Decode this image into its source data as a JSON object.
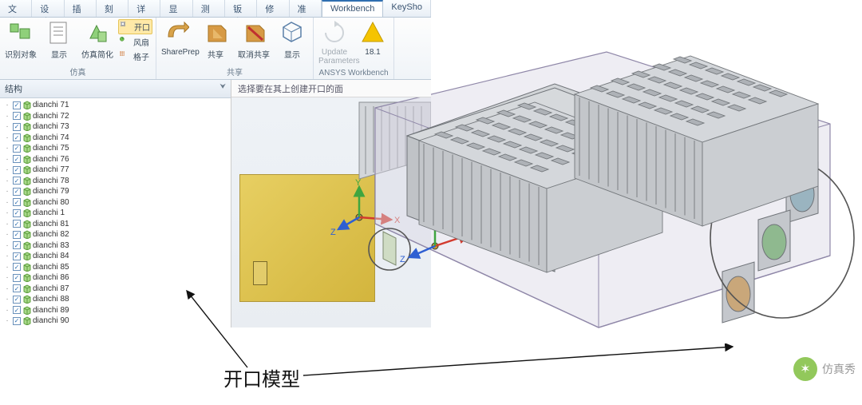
{
  "tabs": [
    "文件",
    "设计",
    "插入",
    "刻面",
    "详细",
    "显示",
    "测量",
    "钣金",
    "修复",
    "准备",
    "Workbench",
    "KeySho"
  ],
  "active_tab": 10,
  "ribbon": {
    "groups": [
      {
        "label": "仿真",
        "big": [
          {
            "key": "识别对象",
            "icon": "recognize"
          },
          {
            "key": "显示",
            "icon": "show-doc"
          },
          {
            "key": "仿真简化",
            "icon": "simplify"
          }
        ],
        "small": [
          {
            "key": "开口",
            "icon": "opening",
            "hl": true
          },
          {
            "key": "风扇",
            "icon": "fan"
          },
          {
            "key": "格子",
            "icon": "grille"
          }
        ]
      },
      {
        "label": "共享",
        "big": [
          {
            "key": "SharePrep",
            "icon": "shareprep"
          },
          {
            "key": "共享",
            "icon": "share"
          },
          {
            "key": "取消共享",
            "icon": "unshare"
          },
          {
            "key": "显示",
            "icon": "show-wire"
          }
        ]
      },
      {
        "label": "ANSYS Workbench",
        "big": [
          {
            "key": "Update Parameters",
            "icon": "update",
            "disabled": true
          },
          {
            "key": "18.1",
            "icon": "ansys"
          }
        ]
      }
    ]
  },
  "tree_title": "结构",
  "tree_items": [
    "dianchi 71",
    "dianchi 72",
    "dianchi 73",
    "dianchi 74",
    "dianchi 75",
    "dianchi 76",
    "dianchi 77",
    "dianchi 78",
    "dianchi 79",
    "dianchi 80",
    "dianchi 1",
    "dianchi 81",
    "dianchi 82",
    "dianchi 83",
    "dianchi 84",
    "dianchi 85",
    "dianchi 86",
    "dianchi 87",
    "dianchi 88",
    "dianchi 89",
    "dianchi 90"
  ],
  "prompt": "选择要在其上创建开口的面",
  "annotation": "开口模型",
  "axes": {
    "x": "X",
    "y": "Y",
    "z": "Z"
  },
  "watermark": "仿真秀",
  "colors": {
    "tab_active_border": "#2f6fb0",
    "ribbon_bg_top": "#fdfdfd",
    "ribbon_bg_bot": "#f0f4f8",
    "highlight_bg": "#ffe9a8",
    "highlight_border": "#e5c45a",
    "front_face_a": "#e7cf62",
    "front_face_b": "#d3b53d",
    "enclosure_fill": "#d5d2e0",
    "enclosure_edge": "#8f87a8",
    "module_fill": "#c7cacf",
    "module_edge": "#6f7378",
    "fan_green": "#8fb98f",
    "fan_tan": "#c9a77a",
    "fan_blue": "#9ab4c0",
    "x_axis": "#d23a2e",
    "y_axis": "#3fa53f",
    "z_axis": "#2e5fd2",
    "circle_stroke": "#555"
  }
}
